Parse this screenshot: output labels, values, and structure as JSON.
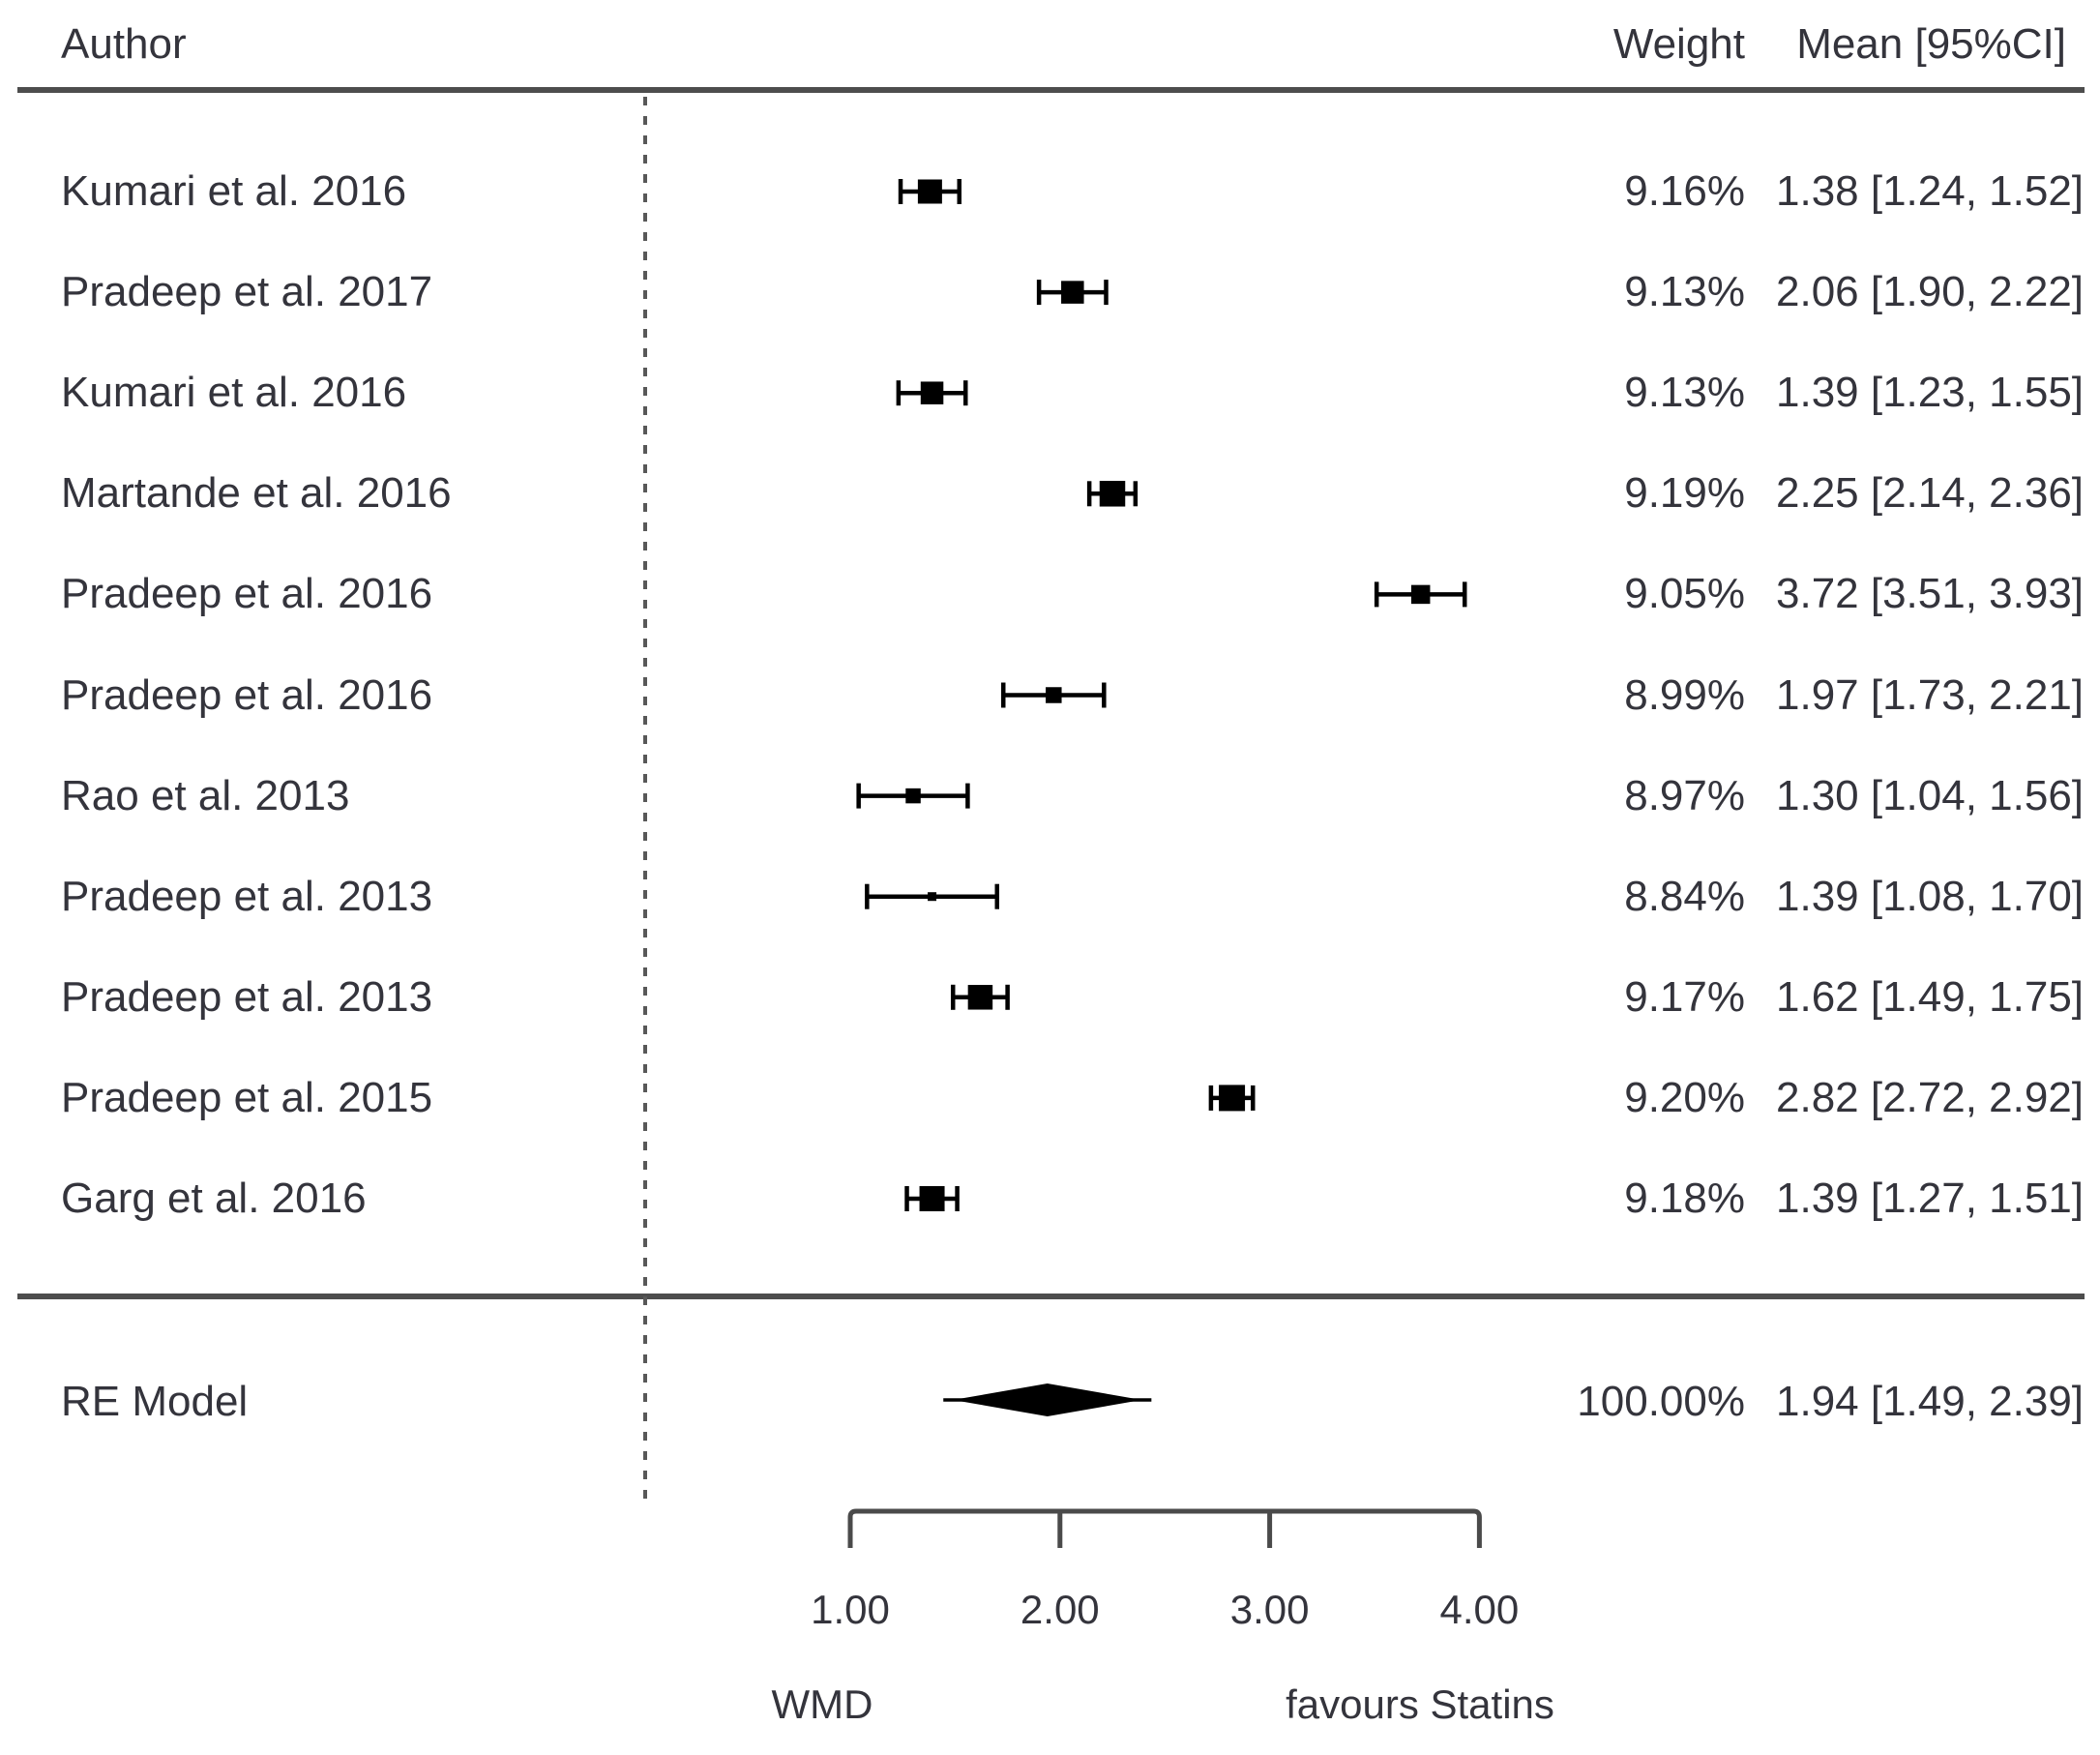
{
  "columns": {
    "author": "Author",
    "weight": "Weight",
    "mean_ci": "Mean [95%CI]"
  },
  "chart_data": {
    "type": "forest",
    "title": "",
    "studies": [
      {
        "author": "Kumari et al. 2016",
        "weight_label": "9.16%",
        "weight": 9.16,
        "mean": 1.38,
        "ci_low": 1.24,
        "ci_high": 1.52,
        "mean_ci_label": "1.38 [1.24, 1.52]"
      },
      {
        "author": "Pradeep et al. 2017",
        "weight_label": "9.13%",
        "weight": 9.13,
        "mean": 2.06,
        "ci_low": 1.9,
        "ci_high": 2.22,
        "mean_ci_label": "2.06 [1.90, 2.22]"
      },
      {
        "author": "Kumari et al. 2016",
        "weight_label": "9.13%",
        "weight": 9.13,
        "mean": 1.39,
        "ci_low": 1.23,
        "ci_high": 1.55,
        "mean_ci_label": "1.39 [1.23, 1.55]"
      },
      {
        "author": "Martande et al. 2016",
        "weight_label": "9.19%",
        "weight": 9.19,
        "mean": 2.25,
        "ci_low": 2.14,
        "ci_high": 2.36,
        "mean_ci_label": "2.25 [2.14, 2.36]"
      },
      {
        "author": "Pradeep et al. 2016",
        "weight_label": "9.05%",
        "weight": 9.05,
        "mean": 3.72,
        "ci_low": 3.51,
        "ci_high": 3.93,
        "mean_ci_label": "3.72 [3.51, 3.93]"
      },
      {
        "author": "Pradeep et al. 2016",
        "weight_label": "8.99%",
        "weight": 8.99,
        "mean": 1.97,
        "ci_low": 1.73,
        "ci_high": 2.21,
        "mean_ci_label": "1.97 [1.73, 2.21]"
      },
      {
        "author": "Rao et al. 2013",
        "weight_label": "8.97%",
        "weight": 8.97,
        "mean": 1.3,
        "ci_low": 1.04,
        "ci_high": 1.56,
        "mean_ci_label": "1.30 [1.04, 1.56]"
      },
      {
        "author": "Pradeep et al. 2013",
        "weight_label": "8.84%",
        "weight": 8.84,
        "mean": 1.39,
        "ci_low": 1.08,
        "ci_high": 1.7,
        "mean_ci_label": "1.39 [1.08, 1.70]"
      },
      {
        "author": "Pradeep et al. 2013",
        "weight_label": "9.17%",
        "weight": 9.17,
        "mean": 1.62,
        "ci_low": 1.49,
        "ci_high": 1.75,
        "mean_ci_label": "1.62 [1.49, 1.75]"
      },
      {
        "author": "Pradeep et al. 2015",
        "weight_label": "9.20%",
        "weight": 9.2,
        "mean": 2.82,
        "ci_low": 2.72,
        "ci_high": 2.92,
        "mean_ci_label": "2.82 [2.72, 2.92]"
      },
      {
        "author": "Garg et al. 2016",
        "weight_label": "9.18%",
        "weight": 9.18,
        "mean": 1.39,
        "ci_low": 1.27,
        "ci_high": 1.51,
        "mean_ci_label": "1.39 [1.27, 1.51]"
      }
    ],
    "summary": {
      "label": "RE Model",
      "weight_label": "100.00%",
      "weight": 100.0,
      "mean": 1.94,
      "ci_low": 1.49,
      "ci_high": 2.39,
      "mean_ci_label": "1.94 [1.49, 2.39]"
    },
    "x_axis": {
      "ticks": [
        1.0,
        2.0,
        3.0,
        4.0
      ],
      "tick_labels": [
        "1.00",
        "2.00",
        "3.00",
        "4.00"
      ],
      "range": [
        1.0,
        4.0
      ],
      "label_left": "WMD",
      "label_right": "favours Statins",
      "reference_line_value": 0
    }
  },
  "colors": {
    "background": "#ffffff",
    "text": "#34343c",
    "rule": "#4d4d4d",
    "axis": "#4a4a4a",
    "marker": "#000000"
  }
}
